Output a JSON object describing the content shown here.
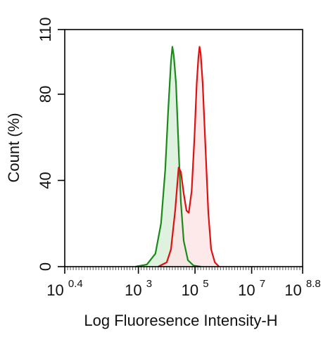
{
  "chart_data": {
    "type": "area",
    "xlabel": "Log Fluoresence Intensity-H",
    "ylabel": "Count  (%)",
    "xscale": "log10",
    "xlim": [
      0.4,
      8.8
    ],
    "ylim": [
      0,
      110
    ],
    "x_ticks": [
      {
        "base": "10",
        "exp": "0.4",
        "value": 0.4
      },
      {
        "base": "10",
        "exp": "3",
        "value": 3
      },
      {
        "base": "10",
        "exp": "5",
        "value": 5
      },
      {
        "base": "10",
        "exp": "7",
        "value": 7
      },
      {
        "base": "10",
        "exp": "8.8",
        "value": 8.8
      }
    ],
    "y_ticks": [
      {
        "label": "0",
        "value": 0
      },
      {
        "label": "40",
        "value": 40
      },
      {
        "label": "80",
        "value": 80
      },
      {
        "label": "110",
        "value": 110
      }
    ],
    "grid": false,
    "series": [
      {
        "color": "#1a8a1a",
        "fill": "#d9eed9",
        "points": [
          [
            2.9,
            0
          ],
          [
            3.3,
            1
          ],
          [
            3.6,
            6
          ],
          [
            3.8,
            20
          ],
          [
            3.95,
            45
          ],
          [
            4.05,
            72
          ],
          [
            4.15,
            95
          ],
          [
            4.2,
            102
          ],
          [
            4.25,
            98
          ],
          [
            4.33,
            85
          ],
          [
            4.42,
            55
          ],
          [
            4.5,
            30
          ],
          [
            4.6,
            12
          ],
          [
            4.75,
            3
          ],
          [
            4.95,
            0.5
          ],
          [
            5.2,
            0
          ]
        ]
      },
      {
        "color": "#e01010",
        "fill": "#fde4e6",
        "points": [
          [
            3.7,
            0
          ],
          [
            4.0,
            2
          ],
          [
            4.15,
            8
          ],
          [
            4.3,
            26
          ],
          [
            4.42,
            46
          ],
          [
            4.5,
            44
          ],
          [
            4.6,
            34
          ],
          [
            4.7,
            26
          ],
          [
            4.78,
            25
          ],
          [
            4.88,
            35
          ],
          [
            4.98,
            60
          ],
          [
            5.06,
            85
          ],
          [
            5.12,
            97
          ],
          [
            5.16,
            102
          ],
          [
            5.2,
            99
          ],
          [
            5.27,
            85
          ],
          [
            5.37,
            55
          ],
          [
            5.47,
            25
          ],
          [
            5.57,
            8
          ],
          [
            5.7,
            2
          ],
          [
            5.85,
            0
          ]
        ]
      }
    ]
  }
}
